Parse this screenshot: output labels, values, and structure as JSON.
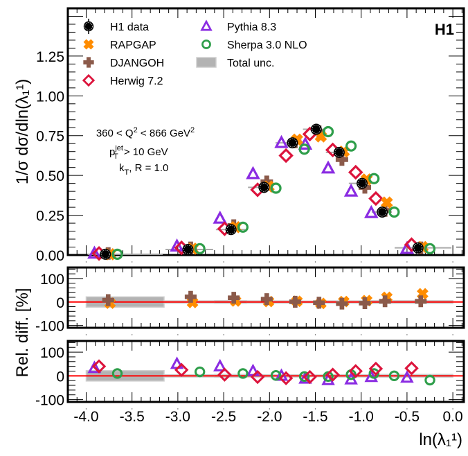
{
  "chart_data": [
    {
      "type": "scatter",
      "panel": "main",
      "title": "",
      "xlabel": "ln(λ₁¹)",
      "ylabel": "1/σ dσ/dln(λ₁¹)",
      "xlim": [
        -4.2,
        0.12
      ],
      "ylim": [
        0,
        1.55
      ],
      "yticks": [
        "0.00",
        "0.25",
        "0.50",
        "0.75",
        "1.00",
        "1.25"
      ],
      "ytick_values": [
        0,
        0.25,
        0.5,
        0.75,
        1.0,
        1.25
      ],
      "bins": [
        [
          -4.0,
          -3.15
        ],
        [
          -3.15,
          -2.6
        ],
        [
          -2.6,
          -2.25
        ],
        [
          -2.25,
          -1.95
        ],
        [
          -1.95,
          -1.65
        ],
        [
          -1.65,
          -1.4
        ],
        [
          -1.4,
          -1.15
        ],
        [
          -1.15,
          -0.9
        ],
        [
          -0.9,
          -0.65
        ],
        [
          -0.65,
          0.0
        ]
      ],
      "x": [
        -3.79,
        -2.89,
        -2.42,
        -2.06,
        -1.75,
        -1.49,
        -1.24,
        -0.99,
        -0.77,
        -0.38
      ],
      "series": [
        {
          "name": "H1 data",
          "marker": "circle-filled",
          "color": "#000000",
          "values": [
            0.005,
            0.035,
            0.16,
            0.425,
            0.705,
            0.79,
            0.645,
            0.45,
            0.27,
            0.045
          ]
        },
        {
          "name": "RAPGAP",
          "marker": "cross-x",
          "color": "#ff8c00",
          "values": [
            0.005,
            0.04,
            0.175,
            0.43,
            0.725,
            0.745,
            0.65,
            0.475,
            0.33,
            0.05
          ]
        },
        {
          "name": "DJANGOH",
          "marker": "cross-plus",
          "color": "#8b5a4a",
          "values": [
            0.01,
            0.045,
            0.185,
            0.46,
            0.71,
            0.775,
            0.6,
            0.425,
            0.28,
            0.045
          ]
        },
        {
          "name": "Herwig 7.2",
          "marker": "diamond-open",
          "color": "#dc143c",
          "values": [
            0.01,
            0.045,
            0.165,
            0.41,
            0.625,
            0.76,
            0.66,
            0.52,
            0.355,
            0.065
          ]
        },
        {
          "name": "Pythia 8.3",
          "marker": "triangle-open",
          "color": "#8a2be2",
          "values": [
            0.01,
            0.055,
            0.23,
            0.51,
            0.705,
            0.695,
            0.545,
            0.4,
            0.265,
            0.04
          ]
        },
        {
          "name": "Sherpa 3.0 NLO",
          "marker": "circle-open",
          "color": "#2e9e4a",
          "values": [
            0.005,
            0.04,
            0.175,
            0.42,
            0.665,
            0.775,
            0.685,
            0.48,
            0.27,
            0.04
          ]
        }
      ],
      "series_x_offsets": {
        "H1 data": 0.0,
        "RAPGAP": 0.05,
        "DJANGOH": 0.03,
        "Herwig 7.2": -0.07,
        "Pythia 8.3": -0.12,
        "Sherpa 3.0 NLO": 0.13
      },
      "legend": {
        "placement": "top-left",
        "entries": [
          "H1 data",
          "RAPGAP",
          "DJANGOH",
          "Herwig 7.2",
          "Pythia 8.3",
          "Sherpa 3.0 NLO",
          "Total unc."
        ]
      },
      "annotations": {
        "q2_range": {
          "pre": "360 < Q",
          "sup1": "2",
          "mid": " < 866 GeV",
          "sup2": "2"
        },
        "pt_cut": {
          "base": "p",
          "sup": "jet",
          "sub": "T",
          "rest": " > 10 GeV"
        },
        "algo": {
          "base": "k",
          "sub": "T",
          "rest": ", R = 1.0"
        },
        "logo": "H1"
      }
    },
    {
      "type": "scatter",
      "panel": "ratio-middle",
      "ylabel": "Rel. diff. [%]",
      "ylim": [
        -110,
        147
      ],
      "yticks": [
        "-100",
        "0",
        "100"
      ],
      "ytick_values": [
        -100,
        0,
        100
      ],
      "reference_line": 0,
      "total_unc_percent": [
        22,
        5,
        6,
        5,
        5,
        4,
        5,
        5,
        6,
        6
      ],
      "series": [
        {
          "name": "RAPGAP",
          "values": [
            -5,
            -2,
            4,
            2,
            3,
            -6,
            2,
            6,
            20,
            35
          ]
        },
        {
          "name": "DJANGOH",
          "values": [
            8,
            22,
            18,
            12,
            1,
            -3,
            -7,
            -5,
            3,
            3
          ]
        }
      ]
    },
    {
      "type": "scatter",
      "panel": "ratio-bottom",
      "ylabel": "Rel. diff. [%]",
      "xlabel": "ln(λ₁¹)",
      "ylim": [
        -110,
        147
      ],
      "yticks": [
        "-100",
        "0",
        "100"
      ],
      "ytick_values": [
        -100,
        0,
        100
      ],
      "xticks": [
        "-4.0",
        "-3.5",
        "-3.0",
        "-2.5",
        "-2.0",
        "-1.5",
        "-1.0",
        "-0.5",
        "0.0"
      ],
      "xtick_values": [
        -4.0,
        -3.5,
        -3.0,
        -2.5,
        -2.0,
        -1.5,
        -1.0,
        -0.5,
        0.0
      ],
      "reference_line": 0,
      "total_unc_percent": [
        22,
        5,
        6,
        5,
        5,
        4,
        5,
        5,
        6,
        6
      ],
      "series": [
        {
          "name": "Herwig 7.2",
          "values": [
            40,
            25,
            5,
            -5,
            -10,
            -5,
            5,
            20,
            30,
            32
          ]
        },
        {
          "name": "Pythia 8.3",
          "values": [
            33,
            50,
            40,
            20,
            0,
            -12,
            -18,
            -15,
            -5,
            -8
          ]
        },
        {
          "name": "Sherpa 3.0 NLO",
          "values": [
            10,
            17,
            10,
            2,
            -3,
            -3,
            5,
            10,
            0,
            -18
          ]
        }
      ]
    }
  ]
}
